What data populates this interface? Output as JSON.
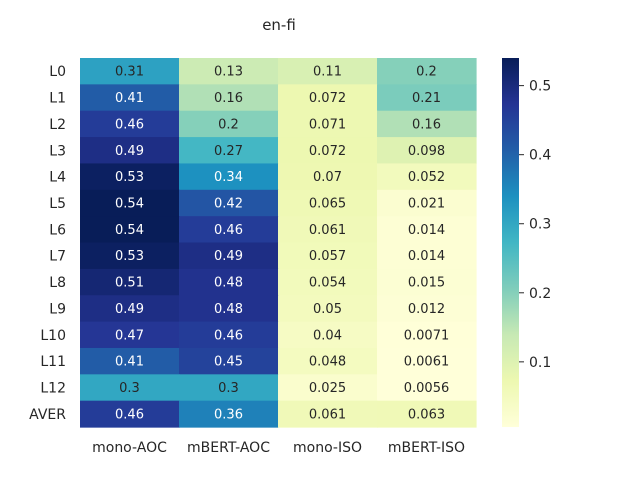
{
  "chart_data": {
    "type": "heatmap",
    "title": "en-fi",
    "columns": [
      "mono-AOC",
      "mBERT-AOC",
      "mono-ISO",
      "mBERT-ISO"
    ],
    "rows": [
      "L0",
      "L1",
      "L2",
      "L3",
      "L4",
      "L5",
      "L6",
      "L7",
      "L8",
      "L9",
      "L10",
      "L11",
      "L12",
      "AVER"
    ],
    "values": [
      [
        0.31,
        0.13,
        0.11,
        0.2
      ],
      [
        0.41,
        0.16,
        0.072,
        0.21
      ],
      [
        0.46,
        0.2,
        0.071,
        0.16
      ],
      [
        0.49,
        0.27,
        0.072,
        0.098
      ],
      [
        0.53,
        0.34,
        0.07,
        0.052
      ],
      [
        0.54,
        0.42,
        0.065,
        0.021
      ],
      [
        0.54,
        0.46,
        0.061,
        0.014
      ],
      [
        0.53,
        0.49,
        0.057,
        0.014
      ],
      [
        0.51,
        0.48,
        0.054,
        0.015
      ],
      [
        0.49,
        0.48,
        0.05,
        0.012
      ],
      [
        0.47,
        0.46,
        0.04,
        0.0071
      ],
      [
        0.41,
        0.45,
        0.048,
        0.0061
      ],
      [
        0.3,
        0.3,
        0.025,
        0.0056
      ],
      [
        0.46,
        0.36,
        0.061,
        0.063
      ]
    ],
    "colormap": "YlGnBu",
    "colorbar": {
      "range": [
        0.0056,
        0.54
      ],
      "ticks": [
        0.1,
        0.2,
        0.3,
        0.4,
        0.5
      ],
      "tick_labels": [
        "0.1",
        "0.2",
        "0.3",
        "0.4",
        "0.5"
      ]
    },
    "annotated": true,
    "legend": "colorbar-right"
  }
}
